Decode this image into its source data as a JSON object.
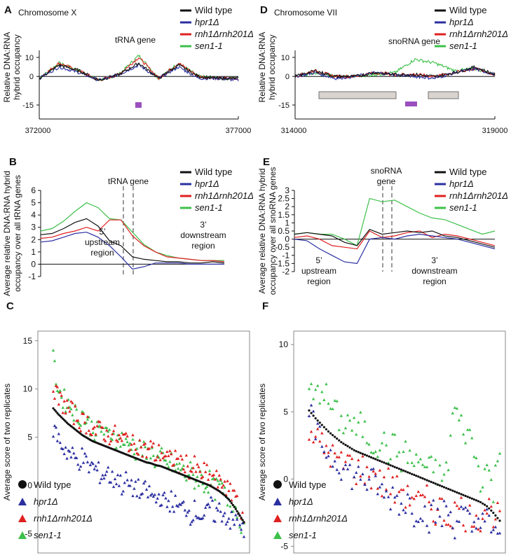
{
  "colors": {
    "wt": "#111111",
    "hpr1": "#2b2fa0",
    "rnh": "#e02020",
    "sen1": "#3cc04a",
    "gray": "#d9d4cf",
    "purple": "#9b4fbf"
  },
  "series_names": [
    "Wild type",
    "hpr1Δ",
    "rnh1Δrnh201Δ",
    "sen1-1"
  ],
  "panels": {
    "A": {
      "letter": "A",
      "chrom": "Chromosome X",
      "feature": "tRNA gene",
      "ylabel": [
        "Relative DNA:RNA",
        "hybrid occupancy"
      ],
      "yticks": [
        "10",
        "0",
        "-15"
      ],
      "xticks": [
        "372000",
        "377000"
      ]
    },
    "D": {
      "letter": "D",
      "chrom": "Chromosome VII",
      "feature": "snoRNA gene",
      "ylabel": [
        "Relative DNA:RNA",
        "hybrid occupancy"
      ],
      "yticks": [
        "10",
        "0",
        "-15"
      ],
      "xticks": [
        "314000",
        "319000"
      ]
    },
    "B": {
      "letter": "B",
      "feature": "tRNA gene",
      "ylabel": [
        "Average relative DNA:RNA hybrid",
        "occupancy over all tRNA genes"
      ],
      "yticks": [
        "6",
        "5",
        "4",
        "3",
        "2",
        "1",
        "0",
        "-1"
      ],
      "up": [
        "5’",
        "upstream",
        "region"
      ],
      "down": [
        "3’",
        "downstream",
        "region"
      ]
    },
    "E": {
      "letter": "E",
      "feature": [
        "snoRNA",
        "gene"
      ],
      "ylabel": [
        "Average relative DNA:RNA hybrid",
        "occupancy over all snoRNA genes"
      ],
      "yticks": [
        "3",
        "2.5",
        "2",
        "1.5",
        "1",
        "0.5",
        "0",
        "-0.5",
        "-1",
        "-1.5",
        "-2"
      ],
      "up": [
        "5’",
        "upstream",
        "region"
      ],
      "down": [
        "3’",
        "downstream",
        "region"
      ]
    },
    "C": {
      "letter": "C",
      "ylabel": "Average score of two replicates",
      "yticks": [
        "15",
        "10",
        "5",
        "0",
        "-5"
      ]
    },
    "F": {
      "letter": "F",
      "ylabel": "Average score of two replicates",
      "yticks": [
        "10",
        "5",
        "0",
        "-5"
      ]
    }
  },
  "chart_data": [
    {
      "panel": "A",
      "type": "line",
      "title": "Chromosome X",
      "annotation": "tRNA gene",
      "xlim": [
        372000,
        377000
      ],
      "ylim": [
        -15,
        10
      ],
      "x": [
        372000,
        372500,
        373000,
        373500,
        374000,
        374500,
        375000,
        375500,
        376000,
        376500,
        377000
      ],
      "series": [
        {
          "name": "Wild type",
          "values": [
            -1,
            6,
            3,
            -2,
            1,
            7,
            -1,
            6,
            0,
            -1,
            -1
          ]
        },
        {
          "name": "hpr1Δ",
          "values": [
            -1,
            5,
            2,
            -2,
            1,
            6,
            -1,
            5,
            -1,
            -1,
            -2
          ]
        },
        {
          "name": "rnh1Δrnh201Δ",
          "values": [
            -1,
            7,
            3,
            -2,
            1,
            10,
            -1,
            7,
            0,
            -1,
            -1
          ]
        },
        {
          "name": "sen1-1",
          "values": [
            -1,
            7,
            3,
            -2,
            1,
            11,
            -1,
            7,
            0,
            -1,
            -1
          ]
        }
      ]
    },
    {
      "panel": "D",
      "type": "line",
      "title": "Chromosome VII",
      "annotation": "snoRNA gene",
      "xlim": [
        314000,
        319000
      ],
      "ylim": [
        -15,
        10
      ],
      "x": [
        314000,
        314500,
        315000,
        315500,
        316000,
        316500,
        317000,
        317500,
        318000,
        318500,
        319000
      ],
      "series": [
        {
          "name": "Wild type",
          "values": [
            0,
            3,
            0,
            0,
            2,
            1,
            1,
            0,
            2,
            5,
            1
          ]
        },
        {
          "name": "hpr1Δ",
          "values": [
            0,
            2,
            -1,
            0,
            2,
            1,
            0,
            -1,
            2,
            4,
            1
          ]
        },
        {
          "name": "rnh1Δrnh201Δ",
          "values": [
            0,
            3,
            0,
            0,
            2,
            1,
            1,
            0,
            2,
            4,
            1
          ]
        },
        {
          "name": "sen1-1",
          "values": [
            0,
            2,
            0,
            0,
            1,
            2,
            9,
            7,
            3,
            4,
            1
          ]
        }
      ]
    },
    {
      "panel": "B",
      "type": "line",
      "annotation": "tRNA gene",
      "ylim": [
        -1,
        6
      ],
      "x": [
        0,
        1,
        2,
        3,
        4,
        5,
        6,
        7,
        8,
        9,
        10,
        11,
        12,
        13,
        14,
        15,
        16
      ],
      "series": [
        {
          "name": "Wild type",
          "values": [
            2.4,
            2.5,
            2.9,
            3.4,
            3.7,
            3.1,
            1.9,
            1.5,
            0.6,
            0.4,
            0.3,
            0.2,
            0.2,
            0.1,
            0.1,
            0.2,
            0.1
          ]
        },
        {
          "name": "hpr1Δ",
          "values": [
            1.8,
            1.9,
            2.2,
            2.5,
            2.6,
            2.2,
            1.5,
            0.6,
            -0.4,
            -0.2,
            0.1,
            0.1,
            0.1,
            0.0,
            0.0,
            0.0,
            0.0
          ]
        },
        {
          "name": "rnh1Δrnh201Δ",
          "values": [
            2.1,
            2.2,
            2.5,
            2.7,
            3.0,
            2.7,
            3.6,
            3.6,
            2.3,
            1.5,
            1.0,
            0.6,
            0.5,
            0.4,
            0.3,
            0.3,
            0.2
          ]
        },
        {
          "name": "sen1-1",
          "values": [
            2.7,
            2.9,
            3.5,
            4.3,
            5.0,
            4.6,
            3.7,
            3.6,
            2.6,
            1.6,
            1.0,
            0.7,
            0.5,
            0.4,
            0.3,
            0.3,
            0.3
          ]
        }
      ]
    },
    {
      "panel": "E",
      "type": "line",
      "annotation": "snoRNA gene",
      "ylim": [
        -2,
        3
      ],
      "x": [
        0,
        1,
        2,
        3,
        4,
        5,
        6,
        7,
        8,
        9,
        10,
        11,
        12,
        13,
        14,
        15,
        16
      ],
      "series": [
        {
          "name": "Wild type",
          "values": [
            0.3,
            0.4,
            0.3,
            0.2,
            -0.2,
            -0.4,
            0.6,
            0.3,
            0.4,
            0.5,
            0.4,
            0.5,
            0.2,
            0.1,
            -0.1,
            -0.3,
            -0.5
          ]
        },
        {
          "name": "hpr1Δ",
          "values": [
            0.0,
            -0.1,
            -0.6,
            -1.0,
            -1.4,
            -1.5,
            0.0,
            0.1,
            0.0,
            0.2,
            0.3,
            0.2,
            0.1,
            0.0,
            -0.2,
            -0.4,
            -0.6
          ]
        },
        {
          "name": "rnh1Δrnh201Δ",
          "values": [
            0.1,
            0.2,
            0.0,
            -0.4,
            -0.5,
            -0.6,
            0.5,
            0.1,
            0.2,
            0.4,
            0.5,
            0.1,
            0.3,
            0.2,
            0.0,
            -0.2,
            -0.4
          ]
        },
        {
          "name": "sen1-1",
          "values": [
            0.3,
            0.4,
            0.3,
            0.3,
            0.0,
            -0.4,
            2.5,
            2.3,
            2.4,
            2.0,
            1.6,
            1.3,
            1.2,
            0.9,
            0.6,
            0.3,
            0.5
          ]
        }
      ]
    },
    {
      "panel": "C",
      "type": "scatter",
      "ylim": [
        -7,
        16
      ],
      "n_points": 140,
      "series": [
        {
          "name": "Wild type",
          "values": [
            8.0,
            7.4,
            6.9,
            6.4,
            6.0,
            5.6,
            5.2,
            4.9,
            4.6,
            4.4,
            4.2,
            4.0,
            3.8,
            3.6,
            3.4,
            3.2,
            3.0,
            2.8,
            2.6,
            2.4,
            2.3,
            2.1,
            2.0,
            1.8,
            1.6,
            1.4,
            1.2,
            1.0,
            0.8,
            0.6,
            0.4,
            0.2,
            0.0,
            -0.3,
            -0.6,
            -1.0,
            -1.5,
            -2.2,
            -3.0,
            -3.8
          ]
        },
        {
          "name": "hpr1Δ",
          "values": [
            6,
            5,
            4,
            3.5,
            3,
            2.5,
            3,
            2,
            2,
            1.5,
            1,
            1.5,
            0.5,
            1,
            0,
            0.5,
            -0.5,
            0,
            -1,
            -0.5,
            -1,
            -1.5,
            -1,
            -2,
            -1.5,
            -2,
            -2.5,
            -2,
            -3,
            -2.5,
            -3,
            -3.5,
            -2,
            -3,
            -2.5,
            -3,
            -3.5,
            -4,
            -3,
            -5.5
          ]
        },
        {
          "name": "rnh1Δrnh201Δ",
          "values": [
            10.5,
            9,
            8.5,
            8,
            7.5,
            7,
            6.5,
            6.5,
            6,
            5.5,
            6,
            5,
            5.5,
            5,
            4.5,
            5,
            4,
            4.5,
            4,
            3.5,
            4,
            3,
            3.5,
            3,
            2.5,
            3,
            2,
            2.5,
            1.5,
            2,
            1,
            1.5,
            0.5,
            1,
            0,
            0.5,
            -1,
            -0.5,
            -2,
            -4.5
          ]
        },
        {
          "name": "sen1-1",
          "values": [
            13,
            10,
            9,
            8.5,
            8,
            7,
            7.5,
            6.5,
            6,
            5.5,
            6,
            5,
            5.5,
            4.5,
            5,
            4,
            4.5,
            3.5,
            4,
            3,
            3.5,
            2.5,
            3,
            2,
            2.5,
            1.5,
            2,
            1,
            1.5,
            0.5,
            1,
            0,
            0.5,
            -0.5,
            0,
            -1,
            -1.5,
            -2,
            -3,
            -5
          ]
        }
      ]
    },
    {
      "panel": "F",
      "type": "scatter",
      "ylim": [
        -5.5,
        11
      ],
      "n_points": 90,
      "series": [
        {
          "name": "Wild type",
          "values": [
            5.1,
            4.5,
            4.0,
            3.5,
            3.1,
            2.7,
            2.4,
            2.1,
            1.9,
            1.7,
            1.5,
            1.3,
            1.1,
            0.9,
            0.7,
            0.5,
            0.3,
            0.1,
            -0.1,
            -0.3,
            -0.5,
            -0.7,
            -0.9,
            -1.1,
            -1.3,
            -1.5,
            -1.7,
            -2.0,
            -2.5,
            -3.1
          ]
        },
        {
          "name": "hpr1Δ",
          "values": [
            5,
            3.5,
            2.5,
            2,
            1.5,
            1,
            0.5,
            0,
            0.5,
            -0.5,
            0,
            -1,
            -1.5,
            -1,
            -2,
            -1.5,
            -2.5,
            -2,
            -3,
            -2.5,
            -3,
            -2,
            -3.5,
            -2.5,
            -3,
            -4,
            -2.5,
            -3,
            -4.5,
            -3.5
          ]
        },
        {
          "name": "rnh1Δrnh201Δ",
          "values": [
            4,
            3,
            2.5,
            2,
            1.5,
            1,
            1.5,
            0.5,
            1,
            0,
            0.5,
            -0.5,
            0,
            -1,
            -0.5,
            -1.5,
            -1,
            -2,
            -1.5,
            -2.5,
            -2,
            -3,
            -2.5,
            -2,
            -3,
            -2.5,
            -3,
            -2,
            -2.5,
            -3
          ]
        },
        {
          "name": "sen1-1",
          "values": [
            6.5,
            6,
            7,
            5.5,
            5,
            4,
            4.5,
            3.5,
            4,
            3,
            2.5,
            3,
            2,
            2.5,
            1.5,
            2,
            1,
            1.5,
            0.5,
            1,
            0,
            0.5,
            5.5,
            4,
            3.5,
            2.5,
            0,
            1,
            -1,
            2.5
          ]
        }
      ]
    }
  ]
}
